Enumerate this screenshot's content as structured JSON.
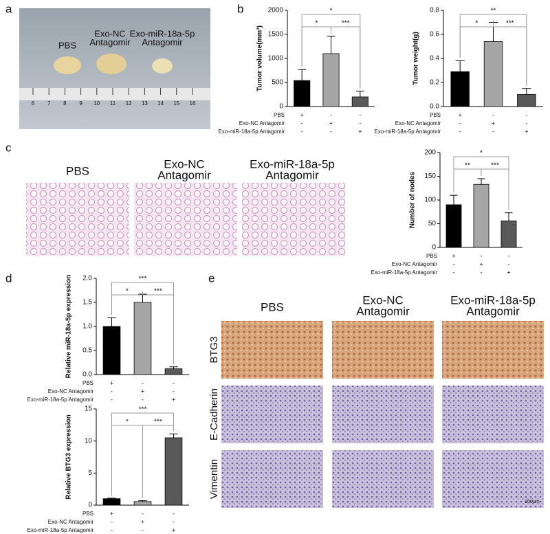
{
  "panel_letters": [
    "a",
    "b",
    "c",
    "d",
    "e"
  ],
  "photo": {
    "labels": [
      [
        "PBS"
      ],
      [
        "Exo-NC",
        "Antagomir"
      ],
      [
        "Exo-miR-18a-5p",
        "Antagomir"
      ]
    ],
    "ruler": [
      "6",
      "7",
      "8",
      "9",
      "10",
      "11",
      "12",
      "13",
      "14",
      "15",
      "16"
    ]
  },
  "histology": {
    "labels": [
      [
        "PBS"
      ],
      [
        "Exo-NC",
        "Antagomir"
      ],
      [
        "Exo-miR-18a-5p",
        "Antagomir"
      ]
    ]
  },
  "ihc": {
    "columns": [
      [
        "PBS"
      ],
      [
        "Exo-NC",
        "Antagomir"
      ],
      [
        "Exo-miR-18a-5p",
        "Antagomir"
      ]
    ],
    "rows": [
      "BTG3",
      "E-Cadherin",
      "Vimentin"
    ],
    "scale_bar": "200μm"
  },
  "chart_data": [
    {
      "type": "bar",
      "ylabel": "Tumor volume(mm³)",
      "values": [
        540,
        1100,
        200
      ],
      "errors": [
        230,
        360,
        120
      ],
      "colors": [
        "#000000",
        "#a6a6a6",
        "#595959"
      ],
      "ylim": [
        0,
        2000
      ],
      "yticks": [
        0,
        500,
        1000,
        1500,
        2000
      ],
      "conditions": [
        {
          "name": "PBS",
          "marks": [
            "+",
            "-",
            "-"
          ]
        },
        {
          "name": "Exo-NC Antagomir",
          "marks": [
            "-",
            "+",
            "-"
          ]
        },
        {
          "name": "Exo-miR-18a-5p Antagomir",
          "marks": [
            "-",
            "-",
            "+"
          ]
        }
      ],
      "significance": [
        {
          "from": 0,
          "to": 1,
          "label": "*"
        },
        {
          "from": 1,
          "to": 2,
          "label": "***"
        },
        {
          "from": 0,
          "to": 2,
          "label": "*"
        }
      ]
    },
    {
      "type": "bar",
      "ylabel": "Tumor weight(g)",
      "values": [
        0.29,
        0.54,
        0.1
      ],
      "errors": [
        0.09,
        0.16,
        0.05
      ],
      "colors": [
        "#000000",
        "#a6a6a6",
        "#595959"
      ],
      "ylim": [
        0,
        0.8
      ],
      "yticks": [
        {
          "value": 0,
          "label": "0.0"
        },
        0.2,
        0.4,
        0.6,
        0.8
      ],
      "conditions": [
        {
          "name": "PBS",
          "marks": [
            "+",
            "-",
            "-"
          ]
        },
        {
          "name": "Exo-NC Antagomir",
          "marks": [
            "-",
            "+",
            "-"
          ]
        },
        {
          "name": "Exo-miR-18a-5p Antagomir",
          "marks": [
            "-",
            "-",
            "+"
          ]
        }
      ],
      "significance": [
        {
          "from": 0,
          "to": 1,
          "label": "*"
        },
        {
          "from": 1,
          "to": 2,
          "label": "***"
        },
        {
          "from": 0,
          "to": 2,
          "label": "**"
        }
      ]
    },
    {
      "type": "bar",
      "ylabel": "Number of nodes",
      "values": [
        90,
        133,
        56
      ],
      "errors": [
        20,
        12,
        17
      ],
      "colors": [
        "#000000",
        "#a6a6a6",
        "#595959"
      ],
      "ylim": [
        0,
        200
      ],
      "yticks": [
        0,
        50,
        100,
        150,
        200
      ],
      "conditions": [
        {
          "name": "PBS",
          "marks": [
            "+",
            "-",
            "-"
          ]
        },
        {
          "name": "Exo-NC Antagomir",
          "marks": [
            "-",
            "+",
            "-"
          ]
        },
        {
          "name": "Exo-miR-18a-5p Antagomir",
          "marks": [
            "-",
            "-",
            "+"
          ]
        }
      ],
      "significance": [
        {
          "from": 0,
          "to": 1,
          "label": "**"
        },
        {
          "from": 1,
          "to": 2,
          "label": "***"
        },
        {
          "from": 0,
          "to": 2,
          "label": "*"
        }
      ]
    },
    {
      "type": "bar",
      "ylabel": "Relative miR-18a-5p expression",
      "values": [
        1.0,
        1.5,
        0.12
      ],
      "errors": [
        0.18,
        0.17,
        0.04
      ],
      "colors": [
        "#000000",
        "#a6a6a6",
        "#595959"
      ],
      "ylim": [
        0,
        2
      ],
      "yticks": [
        {
          "value": 0,
          "label": "0.0"
        },
        0.5,
        {
          "value": 1,
          "label": "1.0"
        },
        1.5,
        {
          "value": 2,
          "label": "2.0"
        }
      ],
      "conditions": [
        {
          "name": "PBS",
          "marks": [
            "+",
            "-",
            "-"
          ]
        },
        {
          "name": "Exo-NC Antagomir",
          "marks": [
            "-",
            "+",
            "-"
          ]
        },
        {
          "name": "Exo-miR-18a-5p Antagomir",
          "marks": [
            "-",
            "-",
            "+"
          ]
        }
      ],
      "significance": [
        {
          "from": 0,
          "to": 1,
          "label": "*"
        },
        {
          "from": 1,
          "to": 2,
          "label": "***"
        },
        {
          "from": 0,
          "to": 2,
          "label": "***"
        }
      ]
    },
    {
      "type": "bar",
      "ylabel": "Relative BTG3 expression",
      "values": [
        1.0,
        0.55,
        10.5
      ],
      "errors": [
        0.1,
        0.15,
        0.6
      ],
      "colors": [
        "#000000",
        "#a6a6a6",
        "#595959"
      ],
      "ylim": [
        0,
        15
      ],
      "yticks": [
        0,
        5,
        10,
        15
      ],
      "conditions": [
        {
          "name": "PBS",
          "marks": [
            "+",
            "-",
            "-"
          ]
        },
        {
          "name": "Exo-NC Antagomir",
          "marks": [
            "-",
            "+",
            "-"
          ]
        },
        {
          "name": "Exo-miR-18a-5p Antagomir",
          "marks": [
            "-",
            "-",
            "+"
          ]
        }
      ],
      "significance": [
        {
          "from": 0,
          "to": 1,
          "label": "*"
        },
        {
          "from": 1,
          "to": 2,
          "label": "***"
        },
        {
          "from": 0,
          "to": 2,
          "label": "***"
        }
      ]
    }
  ]
}
